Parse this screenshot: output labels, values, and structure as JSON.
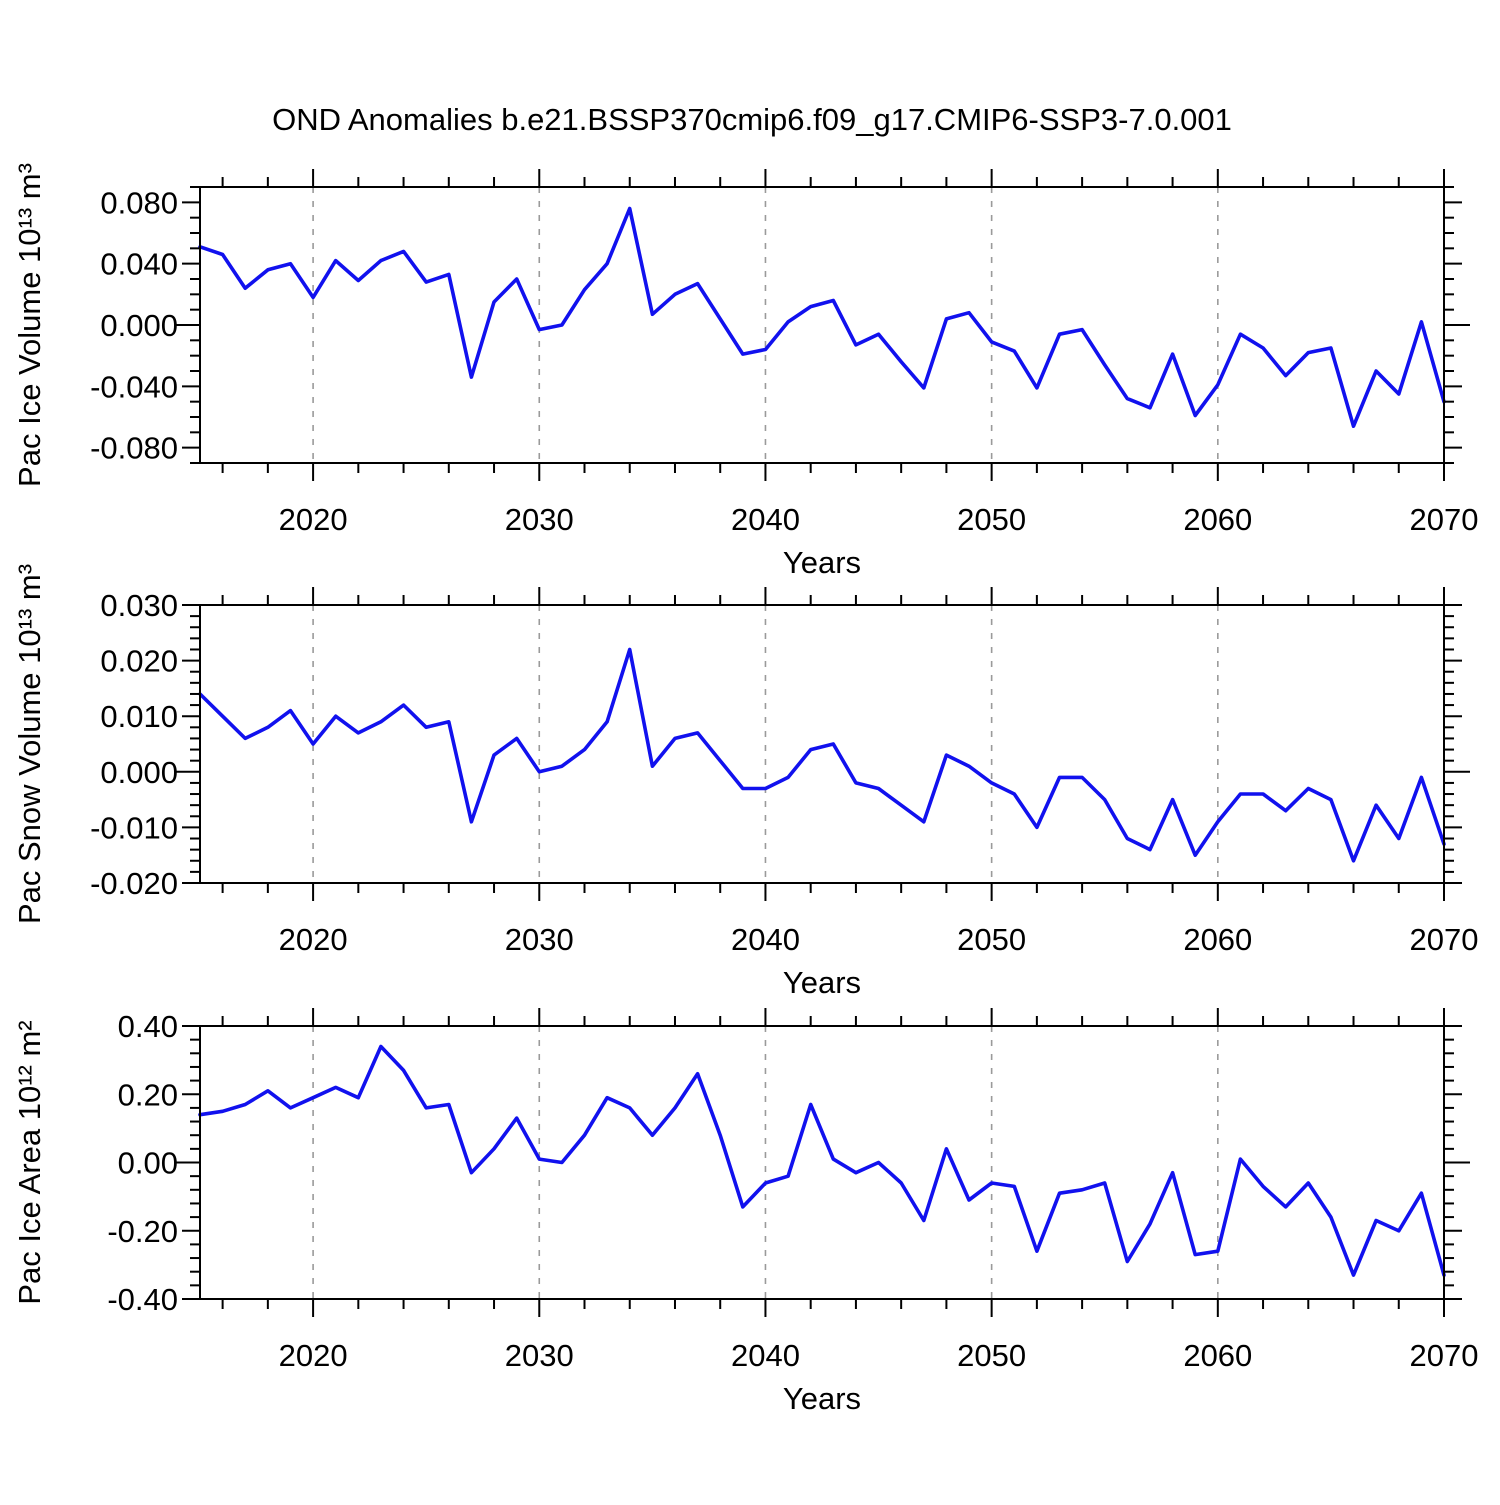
{
  "title": "OND Anomalies b.e21.BSSP370cmip6.f09_g17.CMIP6-SSP3-7.0.001",
  "colors": {
    "line": "#1111ee",
    "grid": "#9a9a9a",
    "frame": "#000000"
  },
  "years": [
    2015,
    2016,
    2017,
    2018,
    2019,
    2020,
    2021,
    2022,
    2023,
    2024,
    2025,
    2026,
    2027,
    2028,
    2029,
    2030,
    2031,
    2032,
    2033,
    2034,
    2035,
    2036,
    2037,
    2038,
    2039,
    2040,
    2041,
    2042,
    2043,
    2044,
    2045,
    2046,
    2047,
    2048,
    2049,
    2050,
    2051,
    2052,
    2053,
    2054,
    2055,
    2056,
    2057,
    2058,
    2059,
    2060,
    2061,
    2062,
    2063,
    2064,
    2065,
    2066,
    2067,
    2068,
    2069,
    2070
  ],
  "chart_data": [
    {
      "type": "line",
      "title": "",
      "ylabel": "Pac Ice Volume 10¹³ m³",
      "xlabel": "Years",
      "ylim": [
        -0.09,
        0.09
      ],
      "ytick_major": [
        0.08,
        0.04,
        0,
        -0.04,
        -0.08
      ],
      "ytick_labels": [
        "0.080",
        "0.040",
        "0.000",
        "-0.040",
        "-0.080"
      ],
      "ytick_minor_step": 0.01,
      "ytick_major_step": 0.04,
      "xlim": [
        2015,
        2070
      ],
      "xtick_major": [
        2020,
        2030,
        2040,
        2050,
        2060,
        2070
      ],
      "xtick_minor_step": 2,
      "grid_decades": [
        2020,
        2030,
        2040,
        2050,
        2060
      ],
      "grid": "vertical-dashed",
      "legend": "none",
      "values": [
        0.051,
        0.046,
        0.024,
        0.036,
        0.04,
        0.018,
        0.042,
        0.029,
        0.042,
        0.048,
        0.028,
        0.033,
        -0.034,
        0.015,
        0.03,
        -0.003,
        0.0,
        0.023,
        0.04,
        0.076,
        0.007,
        0.02,
        0.027,
        0.004,
        -0.019,
        -0.016,
        0.002,
        0.012,
        0.016,
        -0.013,
        -0.006,
        -0.024,
        -0.041,
        0.004,
        0.008,
        -0.011,
        -0.017,
        -0.041,
        -0.006,
        -0.003,
        -0.026,
        -0.048,
        -0.054,
        -0.019,
        -0.059,
        -0.039,
        -0.006,
        -0.015,
        -0.033,
        -0.018,
        -0.015,
        -0.066,
        -0.03,
        -0.045,
        0.002,
        -0.05
      ]
    },
    {
      "type": "line",
      "title": "",
      "ylabel": "Pac Snow Volume 10¹³ m³",
      "xlabel": "Years",
      "ylim": [
        -0.02,
        0.03
      ],
      "ytick_major": [
        0.03,
        0.02,
        0.01,
        0,
        -0.01,
        -0.02
      ],
      "ytick_labels": [
        "0.030",
        "0.020",
        "0.010",
        "0.000",
        "-0.010",
        "-0.020"
      ],
      "ytick_minor_step": 0.002,
      "ytick_major_step": 0.01,
      "xlim": [
        2015,
        2070
      ],
      "xtick_major": [
        2020,
        2030,
        2040,
        2050,
        2060,
        2070
      ],
      "xtick_minor_step": 2,
      "grid_decades": [
        2020,
        2030,
        2040,
        2050,
        2060
      ],
      "grid": "vertical-dashed",
      "legend": "none",
      "values": [
        0.014,
        0.01,
        0.006,
        0.008,
        0.011,
        0.005,
        0.01,
        0.007,
        0.009,
        0.012,
        0.008,
        0.009,
        -0.009,
        0.003,
        0.006,
        0.0,
        0.001,
        0.004,
        0.009,
        0.022,
        0.001,
        0.006,
        0.007,
        0.002,
        -0.003,
        -0.003,
        -0.001,
        0.004,
        0.005,
        -0.002,
        -0.003,
        -0.006,
        -0.009,
        0.003,
        0.001,
        -0.002,
        -0.004,
        -0.01,
        -0.001,
        -0.001,
        -0.005,
        -0.012,
        -0.014,
        -0.005,
        -0.015,
        -0.009,
        -0.004,
        -0.004,
        -0.007,
        -0.003,
        -0.005,
        -0.016,
        -0.006,
        -0.012,
        -0.001,
        -0.013
      ]
    },
    {
      "type": "line",
      "title": "",
      "ylabel": "Pac Ice Area 10¹² m²",
      "xlabel": "Years",
      "ylim": [
        -0.4,
        0.4
      ],
      "ytick_major": [
        0.4,
        0.2,
        0,
        -0.2,
        -0.4
      ],
      "ytick_labels": [
        "0.40",
        "0.20",
        "0.00",
        "-0.20",
        "-0.40"
      ],
      "ytick_minor_step": 0.04,
      "ytick_major_step": 0.2,
      "xlim": [
        2015,
        2070
      ],
      "xtick_major": [
        2020,
        2030,
        2040,
        2050,
        2060,
        2070
      ],
      "xtick_minor_step": 2,
      "grid_decades": [
        2020,
        2030,
        2040,
        2050,
        2060
      ],
      "grid": "vertical-dashed",
      "legend": "none",
      "values": [
        0.14,
        0.15,
        0.17,
        0.21,
        0.16,
        0.19,
        0.22,
        0.19,
        0.34,
        0.27,
        0.16,
        0.17,
        -0.03,
        0.04,
        0.13,
        0.01,
        0.0,
        0.08,
        0.19,
        0.16,
        0.08,
        0.16,
        0.26,
        0.08,
        -0.13,
        -0.06,
        -0.04,
        0.17,
        0.01,
        -0.03,
        0.0,
        -0.06,
        -0.17,
        0.04,
        -0.11,
        -0.06,
        -0.07,
        -0.26,
        -0.09,
        -0.08,
        -0.06,
        -0.29,
        -0.18,
        -0.03,
        -0.27,
        -0.26,
        0.01,
        -0.07,
        -0.13,
        -0.06,
        -0.16,
        -0.33,
        -0.17,
        -0.2,
        -0.09,
        -0.33
      ]
    }
  ]
}
